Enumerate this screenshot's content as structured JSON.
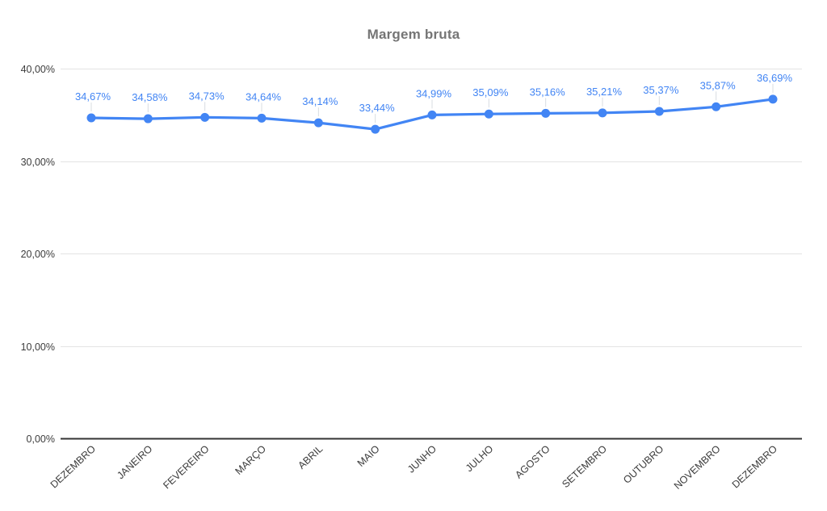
{
  "chart_data": {
    "type": "line",
    "title": "Margem bruta",
    "categories": [
      "DEZEMBRO",
      "JANEIRO",
      "FEVEREIRO",
      "MARÇO",
      "ABRIL",
      "MAIO",
      "JUNHO",
      "JULHO",
      "AGOSTO",
      "SETEMBRO",
      "OUTUBRO",
      "NOVEMBRO",
      "DEZEMBRO"
    ],
    "series": [
      {
        "name": "Margem bruta",
        "values": [
          34.67,
          34.58,
          34.73,
          34.64,
          34.14,
          33.44,
          34.99,
          35.09,
          35.16,
          35.21,
          35.37,
          35.87,
          36.69
        ],
        "point_labels": [
          "34,67%",
          "34,58%",
          "34,73%",
          "34,64%",
          "34,14%",
          "33,44%",
          "34,99%",
          "35,09%",
          "35,16%",
          "35,21%",
          "35,37%",
          "35,87%",
          "36,69%"
        ],
        "color": "#4285f4"
      }
    ],
    "y_axis": {
      "range": [
        0,
        40
      ],
      "ticks": [
        {
          "value": 0,
          "label": "0,00%"
        },
        {
          "value": 10,
          "label": "10,00%"
        },
        {
          "value": 20,
          "label": "20,00%"
        },
        {
          "value": 30,
          "label": "30,00%"
        },
        {
          "value": 40,
          "label": "40,00%"
        }
      ]
    },
    "grid": true,
    "legend": "none",
    "colors": {
      "title": "#757575",
      "axis_text": "#3c3c3c",
      "gridline": "#e3e3e3",
      "axis_line": "#333333",
      "label_connector": "#d8dce2"
    }
  }
}
